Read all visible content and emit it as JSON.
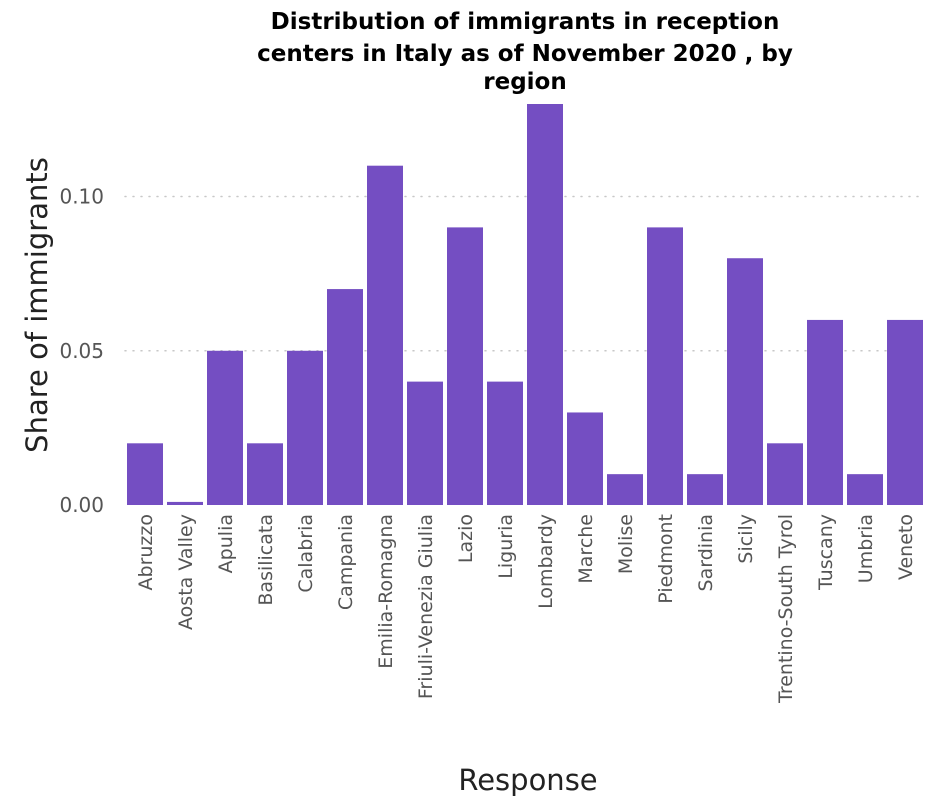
{
  "chart_data": {
    "type": "bar",
    "title_lines": [
      "Distribution of immigrants in reception",
      "centers in Italy as of November 2020 , by",
      "region"
    ],
    "xlabel": "Response",
    "ylabel": "Share of immigrants",
    "ylim": [
      0,
      0.13
    ],
    "yticks": [
      "0.00",
      "0.05",
      "0.10"
    ],
    "ytick_values": [
      0,
      0.05,
      0.1
    ],
    "grid": true,
    "bar_color": "#744ec2",
    "categories": [
      "Abruzzo",
      "Aosta Valley",
      "Apulia",
      "Basilicata",
      "Calabria",
      "Campania",
      "Emilia-Romagna",
      "Friuli-Venezia Giulia",
      "Lazio",
      "Liguria",
      "Lombardy",
      "Marche",
      "Molise",
      "Piedmont",
      "Sardinia",
      "Sicily",
      "Trentino-South Tyrol",
      "Tuscany",
      "Umbria",
      "Veneto"
    ],
    "values": [
      0.02,
      0.001,
      0.05,
      0.02,
      0.05,
      0.07,
      0.11,
      0.04,
      0.09,
      0.04,
      0.13,
      0.03,
      0.01,
      0.09,
      0.01,
      0.08,
      0.02,
      0.06,
      0.01,
      0.06
    ]
  }
}
